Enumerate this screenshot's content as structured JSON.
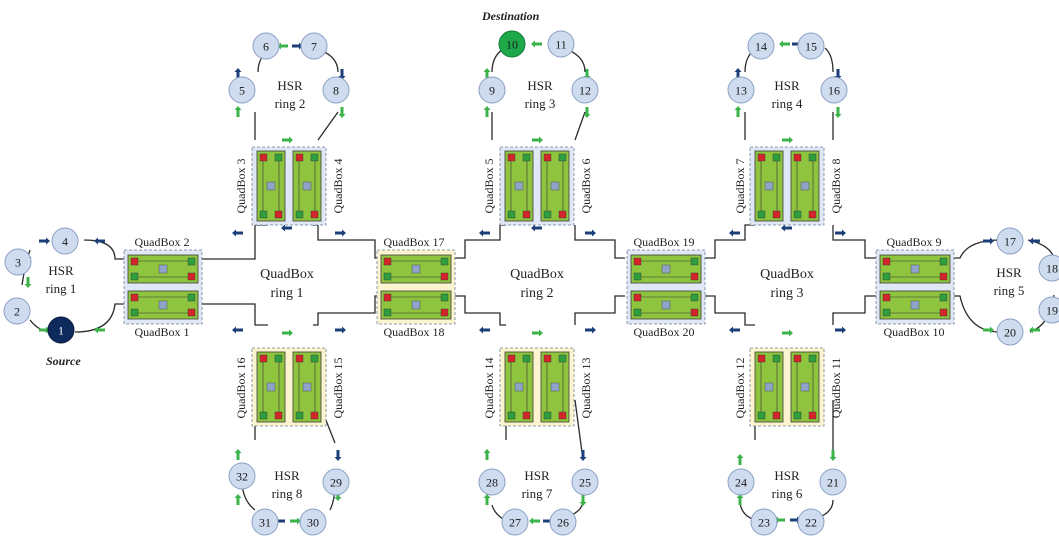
{
  "labels": {
    "destination": "Destination",
    "source": "Source"
  },
  "colors": {
    "node_fill": "#cfdcef",
    "node_stroke": "#8aa0c2",
    "source_fill": "#0f2a5c",
    "destination_fill": "#1ea84a",
    "quadbox_fill": "#8fc43f",
    "quadbox_bg": "#dfe8f4",
    "quadbox_bg_yellow": "#fbf4cf",
    "link": "#2b2b2b",
    "arrow_green": "#3bb34a",
    "arrow_blue": "#1c3f7a",
    "port_red": "#d2262a",
    "port_green": "#2e9e3e",
    "port_blue": "#8fa4c8"
  },
  "hsr_rings": [
    {
      "id": "ring1",
      "line1": "HSR",
      "line2": "ring 1",
      "nodes": [
        "1",
        "2",
        "3",
        "4"
      ]
    },
    {
      "id": "ring2",
      "line1": "HSR",
      "line2": "ring 2",
      "nodes": [
        "5",
        "6",
        "7",
        "8"
      ]
    },
    {
      "id": "ring3",
      "line1": "HSR",
      "line2": "ring 3",
      "nodes": [
        "9",
        "10",
        "11",
        "12"
      ]
    },
    {
      "id": "ring4",
      "line1": "HSR",
      "line2": "ring 4",
      "nodes": [
        "13",
        "14",
        "15",
        "16"
      ]
    },
    {
      "id": "ring5",
      "line1": "HSR",
      "line2": "ring 5",
      "nodes": [
        "17",
        "18",
        "19",
        "20"
      ]
    },
    {
      "id": "ring6",
      "line1": "HSR",
      "line2": "ring 6",
      "nodes": [
        "21",
        "22",
        "23",
        "24"
      ]
    },
    {
      "id": "ring7",
      "line1": "HSR",
      "line2": "ring 7",
      "nodes": [
        "25",
        "26",
        "27",
        "28"
      ]
    },
    {
      "id": "ring8",
      "line1": "HSR",
      "line2": "ring 8",
      "nodes": [
        "29",
        "30",
        "31",
        "32"
      ]
    }
  ],
  "quadbox_rings": [
    {
      "id": "qr1",
      "line1": "QuadBox",
      "line2": "ring 1"
    },
    {
      "id": "qr2",
      "line1": "QuadBox",
      "line2": "ring 2"
    },
    {
      "id": "qr3",
      "line1": "QuadBox",
      "line2": "ring 3"
    }
  ],
  "quadboxes": [
    {
      "id": "qb1",
      "label": "QuadBox 1"
    },
    {
      "id": "qb2",
      "label": "QuadBox 2"
    },
    {
      "id": "qb3",
      "label": "QuadBox 3"
    },
    {
      "id": "qb4",
      "label": "QuadBox 4"
    },
    {
      "id": "qb5",
      "label": "QuadBox 5"
    },
    {
      "id": "qb6",
      "label": "QuadBox 6"
    },
    {
      "id": "qb7",
      "label": "QuadBox 7"
    },
    {
      "id": "qb8",
      "label": "QuadBox 8"
    },
    {
      "id": "qb9",
      "label": "QuadBox 9"
    },
    {
      "id": "qb10",
      "label": "QuadBox 10"
    },
    {
      "id": "qb11",
      "label": "QuadBox 11"
    },
    {
      "id": "qb12",
      "label": "QuadBox 12"
    },
    {
      "id": "qb13",
      "label": "QuadBox 13"
    },
    {
      "id": "qb14",
      "label": "QuadBox 14"
    },
    {
      "id": "qb15",
      "label": "QuadBox 15"
    },
    {
      "id": "qb16",
      "label": "QuadBox 16"
    },
    {
      "id": "qb17",
      "label": "QuadBox 17"
    },
    {
      "id": "qb18",
      "label": "QuadBox 18"
    },
    {
      "id": "qb19",
      "label": "QuadBox 19"
    },
    {
      "id": "qb20",
      "label": "QuadBox 20"
    }
  ]
}
